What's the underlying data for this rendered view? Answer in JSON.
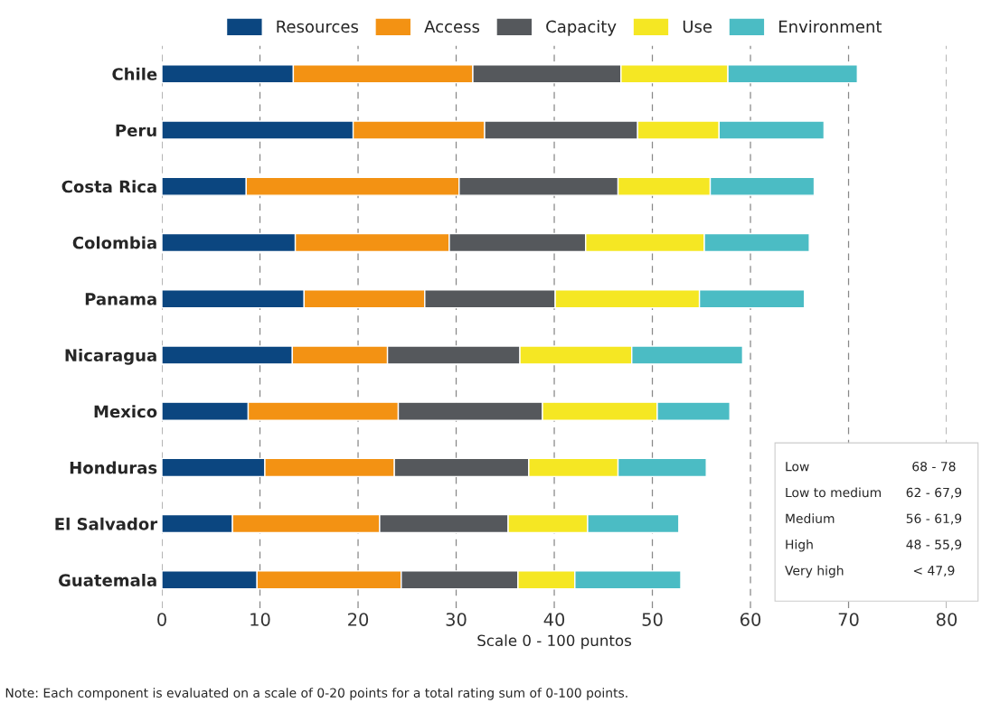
{
  "chart_data": {
    "type": "bar",
    "orientation": "horizontal",
    "stacked": true,
    "categories": [
      "Chile",
      "Peru",
      "Costa Rica",
      "Colombia",
      "Panama",
      "Nicaragua",
      "Mexico",
      "Honduras",
      "El Salvador",
      "Guatemala"
    ],
    "series": [
      {
        "name": "Resources",
        "color": "#0b4680",
        "values": [
          13.4,
          19.5,
          8.6,
          13.6,
          14.5,
          13.3,
          8.8,
          10.5,
          7.2,
          9.7
        ]
      },
      {
        "name": "Access",
        "color": "#f39213",
        "values": [
          18.3,
          13.4,
          21.7,
          15.7,
          12.3,
          9.7,
          15.3,
          13.2,
          15.0,
          14.7
        ]
      },
      {
        "name": "Capacity",
        "color": "#55585c",
        "values": [
          15.1,
          15.6,
          16.2,
          13.9,
          13.3,
          13.5,
          14.7,
          13.7,
          13.1,
          11.9
        ]
      },
      {
        "name": "Use",
        "color": "#f5e723",
        "values": [
          10.9,
          8.3,
          9.4,
          12.1,
          14.7,
          11.4,
          11.7,
          9.1,
          8.1,
          5.8
        ]
      },
      {
        "name": "Environment",
        "color": "#4bbcc4",
        "values": [
          13.2,
          10.7,
          10.6,
          10.7,
          10.7,
          11.3,
          7.4,
          9.0,
          9.3,
          10.8
        ]
      }
    ],
    "xlim": [
      0,
      80
    ],
    "xticks": [
      0,
      10,
      20,
      30,
      40,
      50,
      60,
      70,
      80
    ],
    "xlabel": "Scale 0 - 100 puntos",
    "grid": "x",
    "legend": "top",
    "annotations": [
      "Note: Each component is evaluated on a scale of 0-20 points for a total rating sum of 0-100 points.",
      "Low",
      "68 - 78",
      "Low to medium",
      "62 - 67,9",
      "Medium",
      "56 - 61,9",
      "High",
      "48 - 55,9",
      "Very high",
      "< 47,9"
    ]
  }
}
